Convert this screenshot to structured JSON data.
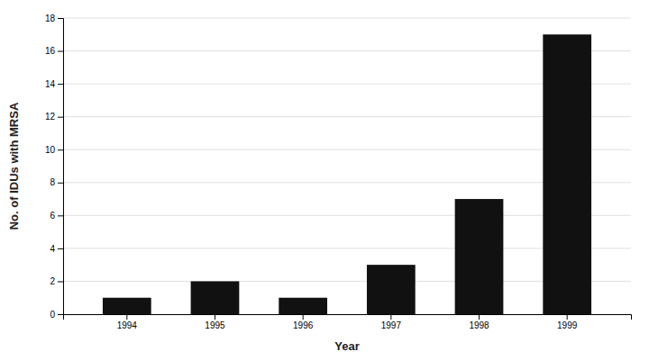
{
  "chart_data": {
    "type": "bar",
    "categories": [
      "1994",
      "1995",
      "1996",
      "1997",
      "1998",
      "1999"
    ],
    "values": [
      1,
      2,
      1,
      3,
      7,
      17
    ],
    "color": "#111111",
    "xlabel": "Year",
    "ylabel": "No. of IDUs with MRSA",
    "ylim": [
      0,
      18
    ],
    "yticks": [
      0,
      2,
      4,
      6,
      8,
      10,
      12,
      14,
      16,
      18
    ],
    "grid": true
  }
}
